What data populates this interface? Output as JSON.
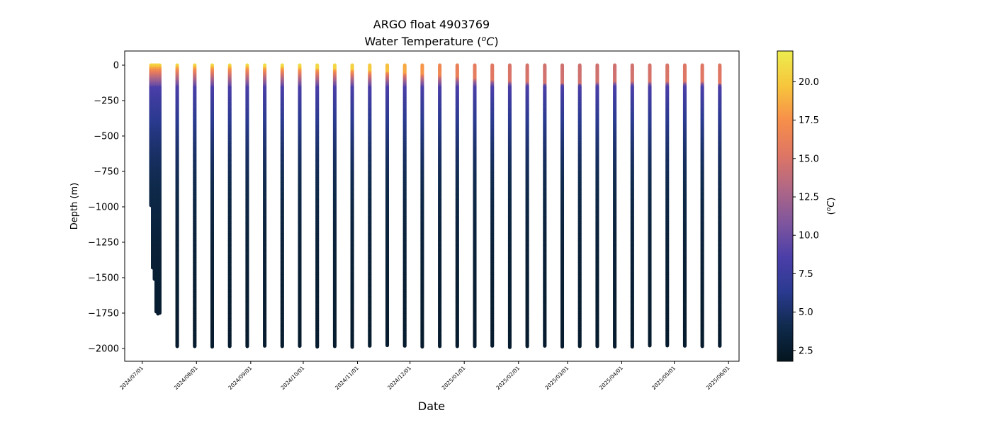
{
  "chart_data": {
    "type": "scatter",
    "title": "ARGO float 4903769",
    "subtitle_prefix": "Water Temperature (",
    "subtitle_unit_sup": "o",
    "subtitle_unit_main": "C",
    "subtitle_suffix": ")",
    "xlabel": "Date",
    "ylabel": "Depth (m)",
    "colorbar_label_prefix": "(",
    "colorbar_label_sup": "o",
    "colorbar_label_main": "C",
    "colorbar_label_suffix": ")",
    "xlim": [
      "2024-06-21",
      "2025-06-07"
    ],
    "ylim": [
      -2090,
      100
    ],
    "clim": [
      1.8,
      22.0
    ],
    "x_ticks": [
      "2024/07/01",
      "2024/08/01",
      "2024/09/01",
      "2024/10/01",
      "2024/11/01",
      "2024/12/01",
      "2025/01/01",
      "2025/02/01",
      "2025/03/01",
      "2025/04/01",
      "2025/05/01",
      "2025/06/01"
    ],
    "x_tick_dates": [
      "2024-07-01",
      "2024-08-01",
      "2024-09-01",
      "2024-10-01",
      "2024-11-01",
      "2024-12-01",
      "2025-01-01",
      "2025-02-01",
      "2025-03-01",
      "2025-04-01",
      "2025-05-01",
      "2025-06-01"
    ],
    "y_ticks": [
      0,
      -250,
      -500,
      -750,
      -1000,
      -1250,
      -1500,
      -1750,
      -2000
    ],
    "y_tick_labels": [
      "0",
      "−250",
      "−500",
      "−750",
      "−1000",
      "−1250",
      "−1500",
      "−1750",
      "−2000"
    ],
    "cbar_ticks": [
      2.5,
      5.0,
      7.5,
      10.0,
      12.5,
      15.0,
      17.5,
      20.0
    ],
    "cbar_tick_labels": [
      "2.5",
      "5.0",
      "7.5",
      "10.0",
      "12.5",
      "15.0",
      "17.5",
      "20.0"
    ],
    "colormap": [
      "#03151e",
      "#0f2a4c",
      "#2a3a8f",
      "#4a3ea8",
      "#7e559e",
      "#b06785",
      "#df7664",
      "#f78f4a",
      "#f7c63c",
      "#eded4e"
    ],
    "profiles": [
      {
        "date": "2024-07-06",
        "max_depth": -990,
        "surface_temp": 20.5,
        "mixed_layer_depth": 15
      },
      {
        "date": "2024-07-07",
        "max_depth": -1430,
        "surface_temp": 20.5,
        "mixed_layer_depth": 15
      },
      {
        "date": "2024-07-08",
        "max_depth": -1510,
        "surface_temp": 20.5,
        "mixed_layer_depth": 15
      },
      {
        "date": "2024-07-09",
        "max_depth": -1740,
        "surface_temp": 20.5,
        "mixed_layer_depth": 15
      },
      {
        "date": "2024-07-10",
        "max_depth": -1755,
        "surface_temp": 20.6,
        "mixed_layer_depth": 15
      },
      {
        "date": "2024-07-11",
        "max_depth": -1750,
        "surface_temp": 20.6,
        "mixed_layer_depth": 15
      },
      {
        "date": "2024-07-21",
        "max_depth": -1985,
        "surface_temp": 20.8,
        "mixed_layer_depth": 15
      },
      {
        "date": "2024-07-31",
        "max_depth": -1985,
        "surface_temp": 20.8,
        "mixed_layer_depth": 15
      },
      {
        "date": "2024-08-10",
        "max_depth": -1988,
        "surface_temp": 20.9,
        "mixed_layer_depth": 15
      },
      {
        "date": "2024-08-20",
        "max_depth": -1985,
        "surface_temp": 20.9,
        "mixed_layer_depth": 15
      },
      {
        "date": "2024-08-30",
        "max_depth": -1985,
        "surface_temp": 21.0,
        "mixed_layer_depth": 15
      },
      {
        "date": "2024-09-09",
        "max_depth": -1982,
        "surface_temp": 21.0,
        "mixed_layer_depth": 20
      },
      {
        "date": "2024-09-19",
        "max_depth": -1985,
        "surface_temp": 21.0,
        "mixed_layer_depth": 20
      },
      {
        "date": "2024-09-29",
        "max_depth": -1983,
        "surface_temp": 20.9,
        "mixed_layer_depth": 25
      },
      {
        "date": "2024-10-09",
        "max_depth": -1988,
        "surface_temp": 20.8,
        "mixed_layer_depth": 30
      },
      {
        "date": "2024-10-19",
        "max_depth": -1985,
        "surface_temp": 20.7,
        "mixed_layer_depth": 35
      },
      {
        "date": "2024-10-29",
        "max_depth": -1990,
        "surface_temp": 20.4,
        "mixed_layer_depth": 40
      },
      {
        "date": "2024-11-08",
        "max_depth": -1982,
        "surface_temp": 20.0,
        "mixed_layer_depth": 50
      },
      {
        "date": "2024-11-18",
        "max_depth": -1978,
        "surface_temp": 19.5,
        "mixed_layer_depth": 55
      },
      {
        "date": "2024-11-28",
        "max_depth": -1982,
        "surface_temp": 18.6,
        "mixed_layer_depth": 65
      },
      {
        "date": "2024-12-08",
        "max_depth": -1988,
        "surface_temp": 17.8,
        "mixed_layer_depth": 75
      },
      {
        "date": "2024-12-18",
        "max_depth": -1985,
        "surface_temp": 16.9,
        "mixed_layer_depth": 85
      },
      {
        "date": "2024-12-28",
        "max_depth": -1985,
        "surface_temp": 16.2,
        "mixed_layer_depth": 95
      },
      {
        "date": "2025-01-07",
        "max_depth": -1985,
        "surface_temp": 15.8,
        "mixed_layer_depth": 105
      },
      {
        "date": "2025-01-17",
        "max_depth": -1982,
        "surface_temp": 15.4,
        "mixed_layer_depth": 115
      },
      {
        "date": "2025-01-27",
        "max_depth": -1992,
        "surface_temp": 15.0,
        "mixed_layer_depth": 125
      },
      {
        "date": "2025-02-06",
        "max_depth": -1985,
        "surface_temp": 14.8,
        "mixed_layer_depth": 135
      },
      {
        "date": "2025-02-16",
        "max_depth": -1982,
        "surface_temp": 14.6,
        "mixed_layer_depth": 140
      },
      {
        "date": "2025-02-26",
        "max_depth": -1988,
        "surface_temp": 14.5,
        "mixed_layer_depth": 140
      },
      {
        "date": "2025-03-08",
        "max_depth": -1985,
        "surface_temp": 14.5,
        "mixed_layer_depth": 140
      },
      {
        "date": "2025-03-18",
        "max_depth": -1985,
        "surface_temp": 14.5,
        "mixed_layer_depth": 135
      },
      {
        "date": "2025-03-28",
        "max_depth": -1988,
        "surface_temp": 14.5,
        "mixed_layer_depth": 130
      },
      {
        "date": "2025-04-07",
        "max_depth": -1988,
        "surface_temp": 14.6,
        "mixed_layer_depth": 130
      },
      {
        "date": "2025-04-17",
        "max_depth": -1980,
        "surface_temp": 14.8,
        "mixed_layer_depth": 130
      },
      {
        "date": "2025-04-27",
        "max_depth": -1980,
        "surface_temp": 15.0,
        "mixed_layer_depth": 130
      },
      {
        "date": "2025-05-07",
        "max_depth": -1982,
        "surface_temp": 15.2,
        "mixed_layer_depth": 130
      },
      {
        "date": "2025-05-17",
        "max_depth": -1985,
        "surface_temp": 15.3,
        "mixed_layer_depth": 130
      },
      {
        "date": "2025-05-27",
        "max_depth": -1982,
        "surface_temp": 15.3,
        "mixed_layer_depth": 140
      }
    ]
  }
}
